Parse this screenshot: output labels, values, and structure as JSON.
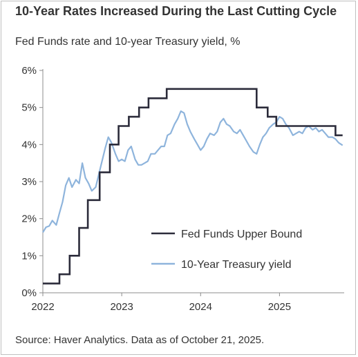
{
  "chart_data": {
    "type": "line",
    "title": "10-Year Rates Increased During the Last Cutting Cycle",
    "subtitle": "Fed Funds rate and 10-year Treasury yield, %",
    "source": "Source: Haver Analytics. Data as of October 21, 2025.",
    "xlim": [
      2022.0,
      2025.82
    ],
    "ylim": [
      0,
      6
    ],
    "x_ticks": [
      2022,
      2023,
      2024,
      2025
    ],
    "x_tick_labels": [
      "2022",
      "2023",
      "2024",
      "2025"
    ],
    "y_ticks": [
      0,
      1,
      2,
      3,
      4,
      5,
      6
    ],
    "y_tick_labels": [
      "0%",
      "1%",
      "2%",
      "3%",
      "4%",
      "5%",
      "6%"
    ],
    "grid": false,
    "legend_position": "inside-bottom-right",
    "series": [
      {
        "name": "Fed Funds Upper Bound",
        "color": "#2b2b3a",
        "style": "step",
        "x": [
          2022.0,
          2022.21,
          2022.34,
          2022.46,
          2022.57,
          2022.72,
          2022.85,
          2022.96,
          2023.09,
          2023.22,
          2023.34,
          2023.57,
          2024.71,
          2024.85,
          2024.96,
          2025.71,
          2025.8
        ],
        "y": [
          0.25,
          0.5,
          1.0,
          1.75,
          2.5,
          3.25,
          4.0,
          4.5,
          4.75,
          5.0,
          5.25,
          5.5,
          5.0,
          4.75,
          4.5,
          4.25,
          4.25
        ]
      },
      {
        "name": "10-Year Treasury yield",
        "color": "#8eb4dc",
        "style": "line",
        "x": [
          2022.0,
          2022.04,
          2022.08,
          2022.12,
          2022.17,
          2022.21,
          2022.25,
          2022.29,
          2022.33,
          2022.37,
          2022.42,
          2022.46,
          2022.5,
          2022.54,
          2022.58,
          2022.62,
          2022.67,
          2022.71,
          2022.75,
          2022.79,
          2022.83,
          2022.87,
          2022.92,
          2022.96,
          2023.0,
          2023.04,
          2023.08,
          2023.12,
          2023.17,
          2023.21,
          2023.25,
          2023.29,
          2023.33,
          2023.37,
          2023.42,
          2023.46,
          2023.5,
          2023.54,
          2023.58,
          2023.62,
          2023.67,
          2023.71,
          2023.75,
          2023.79,
          2023.83,
          2023.87,
          2023.92,
          2023.96,
          2024.0,
          2024.04,
          2024.08,
          2024.12,
          2024.17,
          2024.21,
          2024.25,
          2024.29,
          2024.33,
          2024.37,
          2024.42,
          2024.46,
          2024.5,
          2024.54,
          2024.58,
          2024.62,
          2024.67,
          2024.71,
          2024.75,
          2024.79,
          2024.83,
          2024.87,
          2024.92,
          2024.96,
          2025.0,
          2025.04,
          2025.08,
          2025.12,
          2025.17,
          2025.21,
          2025.25,
          2025.29,
          2025.33,
          2025.37,
          2025.42,
          2025.46,
          2025.5,
          2025.54,
          2025.58,
          2025.62,
          2025.67,
          2025.71,
          2025.75,
          2025.8
        ],
        "y": [
          1.63,
          1.77,
          1.8,
          1.95,
          1.83,
          2.15,
          2.45,
          2.9,
          3.1,
          2.85,
          3.05,
          2.95,
          3.5,
          3.1,
          2.95,
          2.75,
          2.85,
          3.2,
          3.55,
          3.9,
          4.2,
          4.05,
          3.75,
          3.55,
          3.6,
          3.55,
          3.85,
          3.95,
          3.6,
          3.45,
          3.45,
          3.5,
          3.55,
          3.75,
          3.75,
          3.85,
          3.95,
          3.95,
          4.25,
          4.3,
          4.55,
          4.7,
          4.9,
          4.85,
          4.55,
          4.35,
          4.15,
          4.0,
          3.85,
          3.95,
          4.15,
          4.3,
          4.25,
          4.35,
          4.6,
          4.7,
          4.55,
          4.5,
          4.35,
          4.3,
          4.4,
          4.25,
          4.1,
          3.95,
          3.8,
          3.75,
          4.0,
          4.2,
          4.3,
          4.45,
          4.55,
          4.6,
          4.75,
          4.7,
          4.55,
          4.45,
          4.25,
          4.3,
          4.35,
          4.3,
          4.45,
          4.5,
          4.4,
          4.45,
          4.35,
          4.4,
          4.3,
          4.2,
          4.2,
          4.15,
          4.05,
          3.98
        ]
      }
    ]
  }
}
